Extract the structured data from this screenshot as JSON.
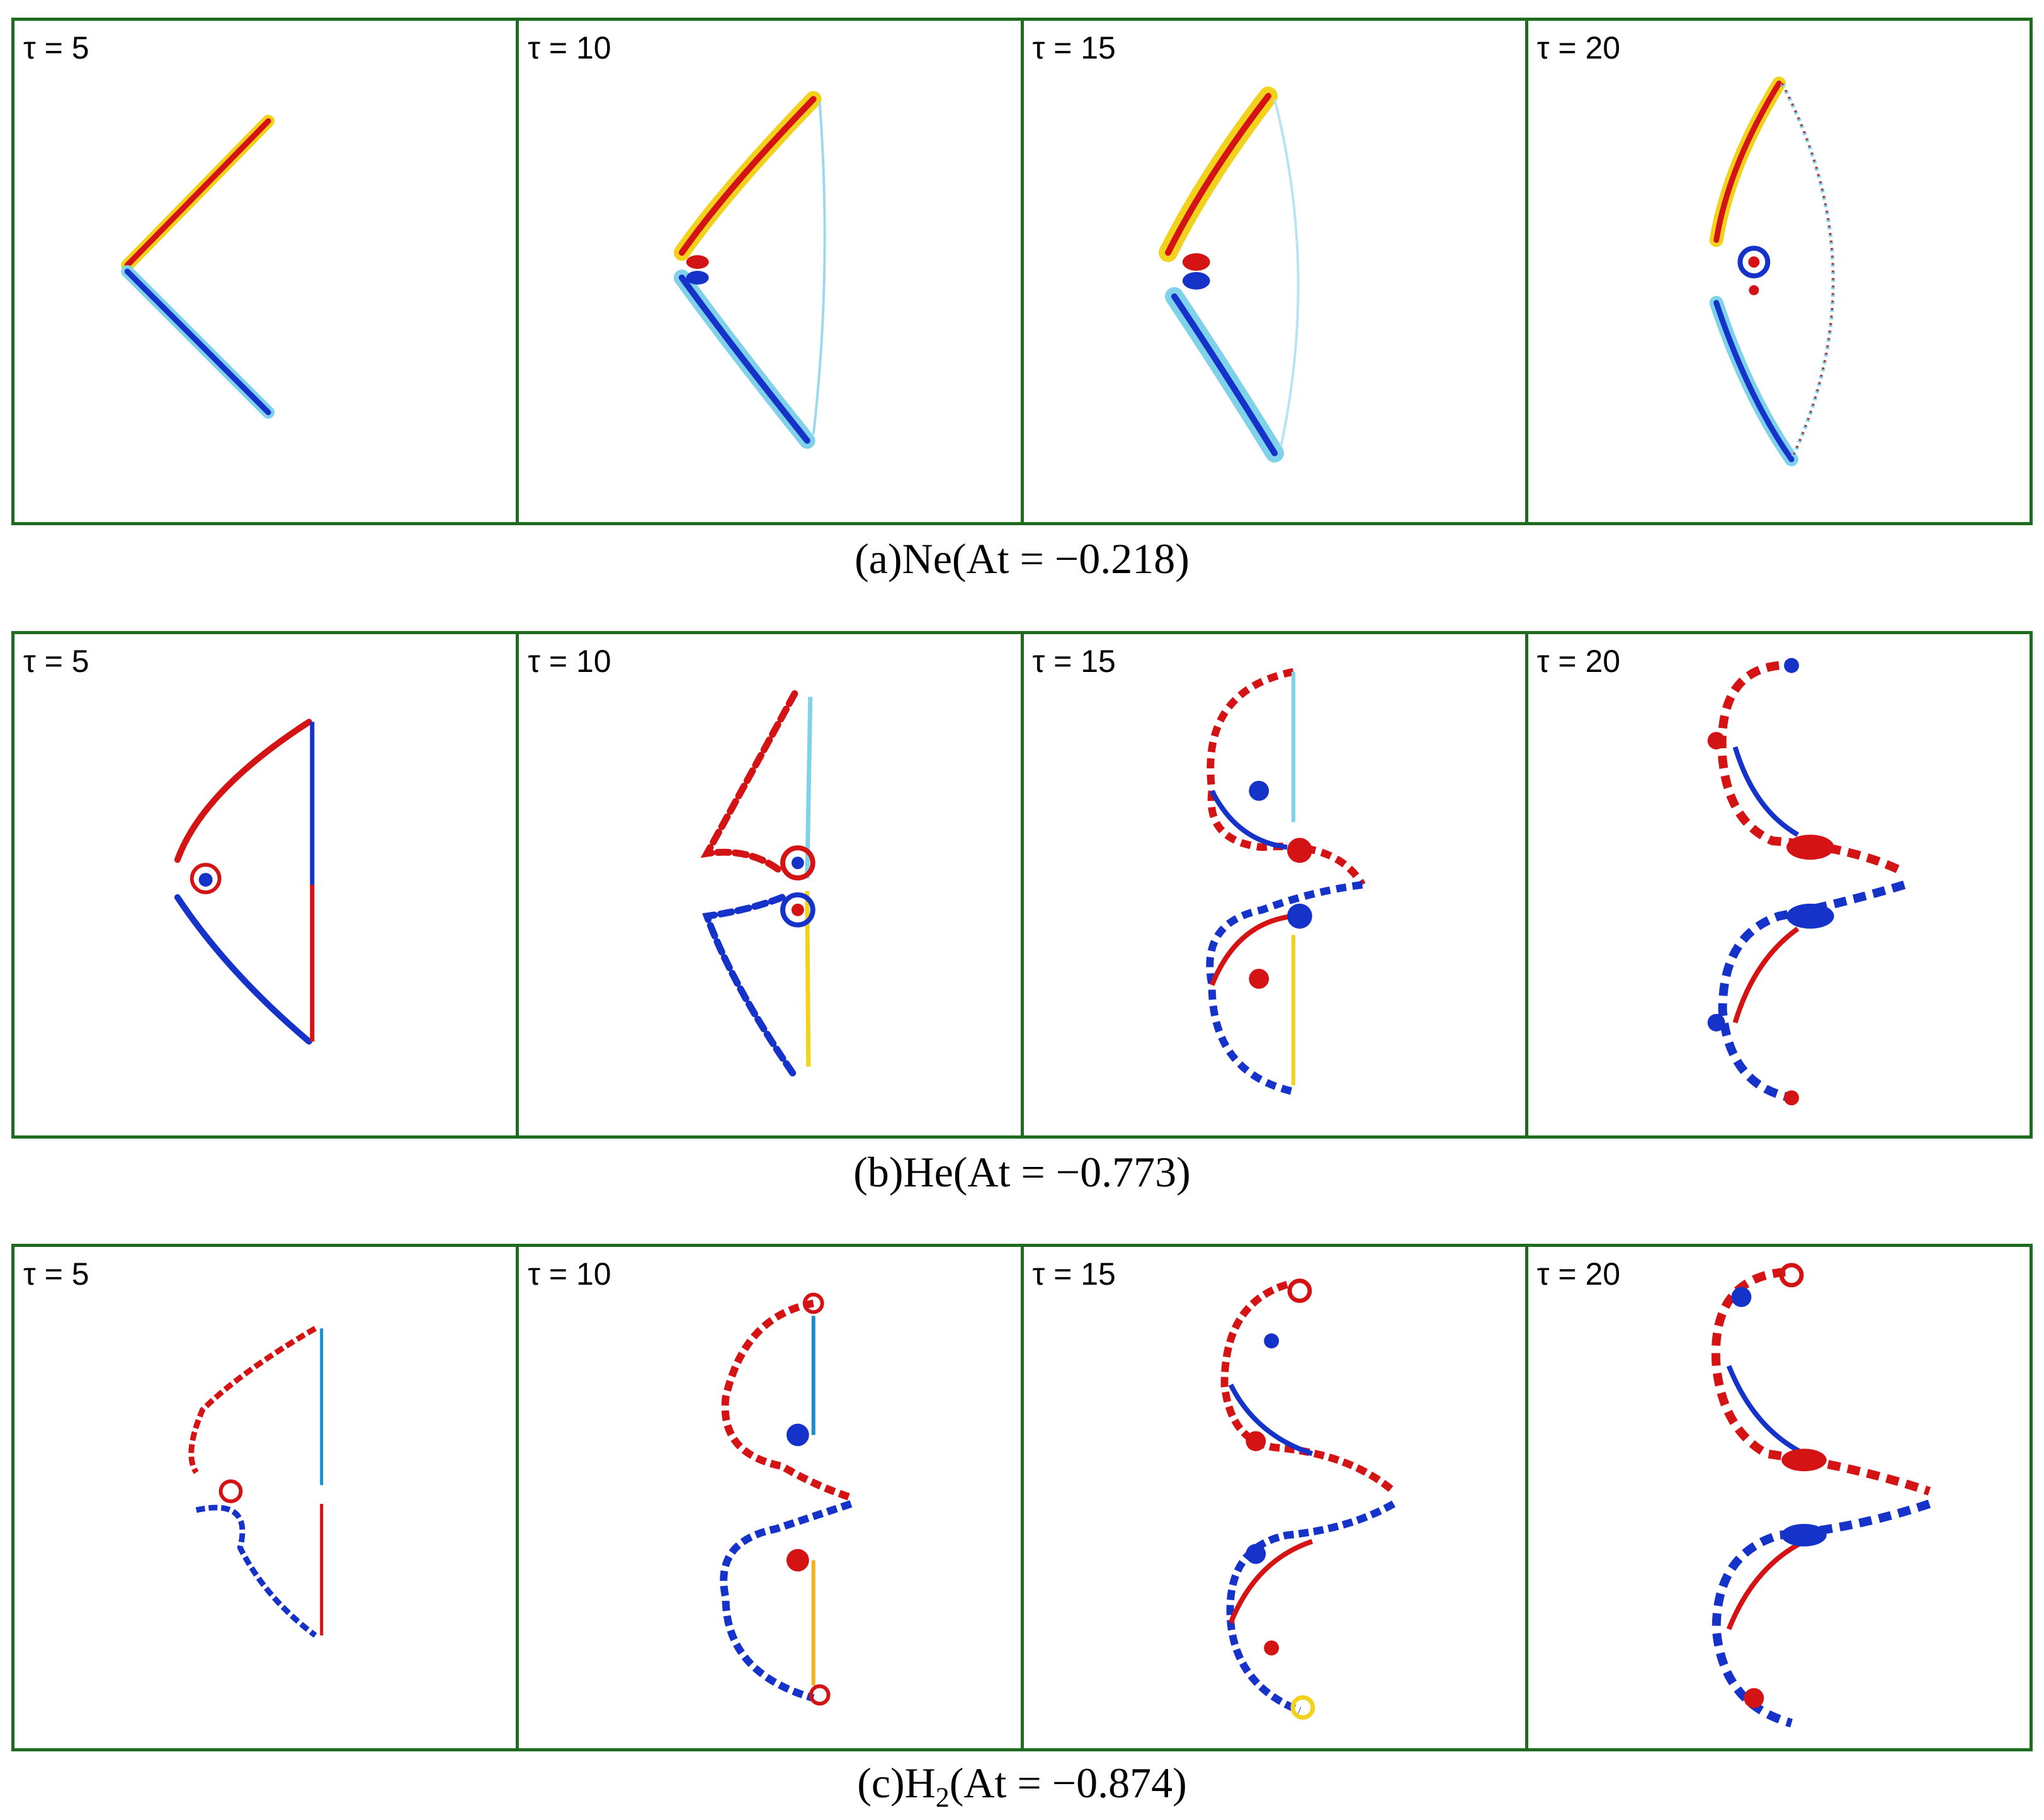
{
  "figure": {
    "colors": {
      "frame": "#1f6b1f",
      "red": "#d41414",
      "blue": "#1533c9",
      "yellow": "#f2d21c",
      "cyan": "#7fd2ea"
    },
    "rows": [
      {
        "id": "a",
        "caption": "(a)Ne(At = −0.218)",
        "panels": [
          {
            "tau": "τ = 5"
          },
          {
            "tau": "τ = 10"
          },
          {
            "tau": "τ = 15"
          },
          {
            "tau": "τ = 20"
          }
        ]
      },
      {
        "id": "b",
        "caption": "(b)He(At = −0.773)",
        "panels": [
          {
            "tau": "τ = 5"
          },
          {
            "tau": "τ = 10"
          },
          {
            "tau": "τ = 15"
          },
          {
            "tau": "τ = 20"
          }
        ]
      },
      {
        "id": "c",
        "caption_prefix": "(c)H",
        "caption_sub": "2",
        "caption_suffix": "(At = −0.874)",
        "panels": [
          {
            "tau": "τ = 5"
          },
          {
            "tau": "τ = 10"
          },
          {
            "tau": "τ = 15"
          },
          {
            "tau": "τ = 20"
          }
        ]
      }
    ]
  }
}
